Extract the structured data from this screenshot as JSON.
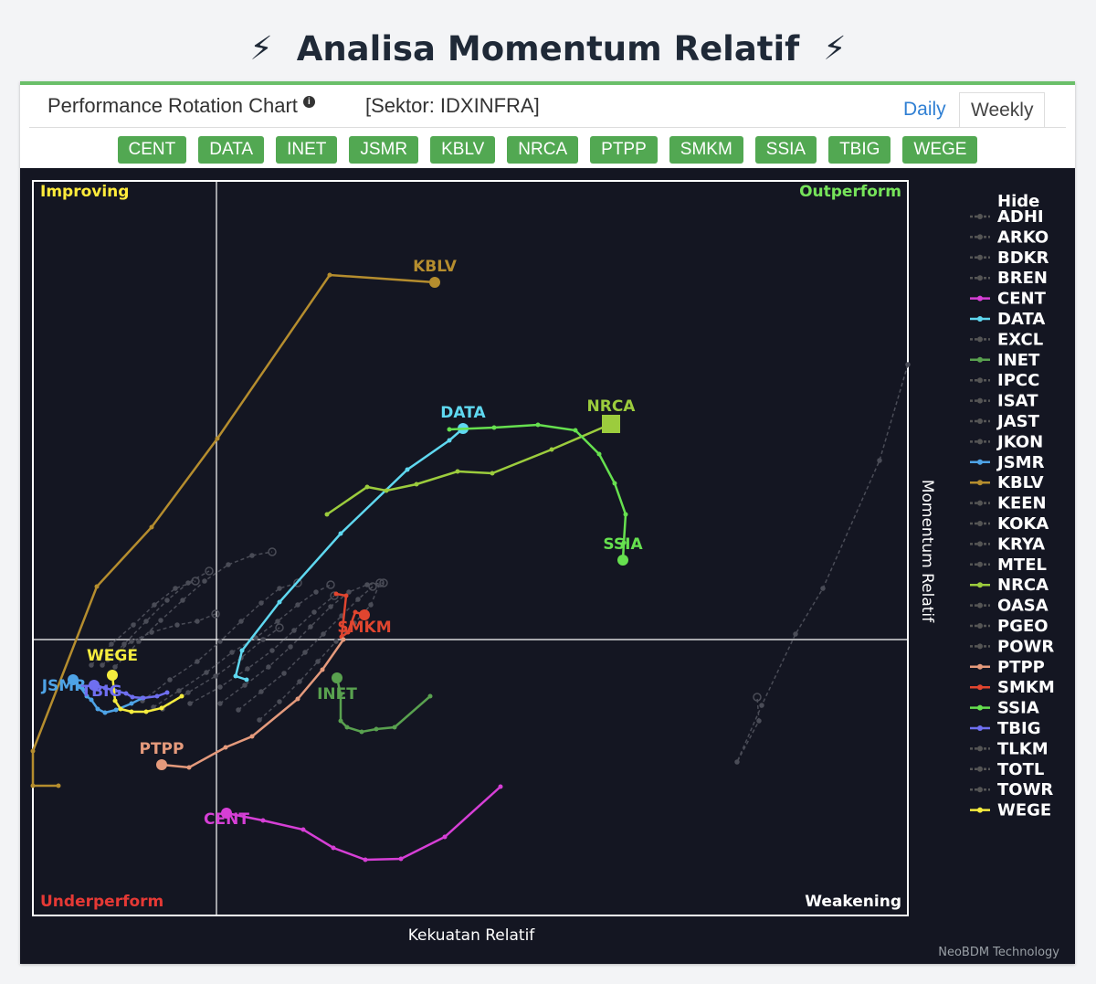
{
  "page": {
    "title": "Analisa Momentum Relatif",
    "bolt_glyph": "⚡"
  },
  "card": {
    "chart_title": "Performance Rotation Chart",
    "sector_label": "[Sektor: IDXINFRA]",
    "tabs": [
      {
        "label": "Daily"
      },
      {
        "label": "Weekly"
      }
    ],
    "chips": [
      "CENT",
      "DATA",
      "INET",
      "JSMR",
      "KBLV",
      "NRCA",
      "PTPP",
      "SMKM",
      "SSIA",
      "TBIG",
      "WEGE"
    ]
  },
  "chart_data": {
    "type": "scatter",
    "xlabel": "Kekuatan Relatif",
    "ylabel": "Momentum Relatif",
    "credit": "NeoBDM Technology",
    "quadrants": {
      "top_left": "Improving",
      "top_right": "Outperform",
      "bottom_left": "Underperform",
      "bottom_right": "Weakening"
    },
    "quadrant_colors": {
      "Improving": "#ffeb3b",
      "Outperform": "#76e35a",
      "Underperform": "#e53935",
      "Weakening": "#ffffff"
    },
    "xlim": [
      0,
      958
    ],
    "ylim": [
      0,
      804
    ],
    "x_center": 201,
    "y_center": 302,
    "legend_title": "Hide",
    "legend": [
      {
        "name": "ADHI",
        "color": "#555555"
      },
      {
        "name": "ARKO",
        "color": "#555555"
      },
      {
        "name": "BDKR",
        "color": "#555555"
      },
      {
        "name": "BREN",
        "color": "#555555"
      },
      {
        "name": "CENT",
        "color": "#d63fd6"
      },
      {
        "name": "DATA",
        "color": "#5fd8f0"
      },
      {
        "name": "EXCL",
        "color": "#555555"
      },
      {
        "name": "INET",
        "color": "#59a14f"
      },
      {
        "name": "IPCC",
        "color": "#555555"
      },
      {
        "name": "ISAT",
        "color": "#555555"
      },
      {
        "name": "JAST",
        "color": "#555555"
      },
      {
        "name": "JKON",
        "color": "#555555"
      },
      {
        "name": "JSMR",
        "color": "#4ea3e6"
      },
      {
        "name": "KBLV",
        "color": "#b58d2e"
      },
      {
        "name": "KEEN",
        "color": "#555555"
      },
      {
        "name": "KOKA",
        "color": "#555555"
      },
      {
        "name": "KRYA",
        "color": "#555555"
      },
      {
        "name": "MTEL",
        "color": "#555555"
      },
      {
        "name": "NRCA",
        "color": "#9ccc3d"
      },
      {
        "name": "OASA",
        "color": "#555555"
      },
      {
        "name": "PGEO",
        "color": "#555555"
      },
      {
        "name": "POWR",
        "color": "#555555"
      },
      {
        "name": "PTPP",
        "color": "#e59a7c"
      },
      {
        "name": "SMKM",
        "color": "#e0452f"
      },
      {
        "name": "SSIA",
        "color": "#66e04f"
      },
      {
        "name": "TBIG",
        "color": "#6f6ff0"
      },
      {
        "name": "TLKM",
        "color": "#555555"
      },
      {
        "name": "TOTL",
        "color": "#555555"
      },
      {
        "name": "TOWR",
        "color": "#555555"
      },
      {
        "name": "WEGE",
        "color": "#f5ec3e"
      }
    ],
    "series": [
      {
        "name": "KBLV",
        "color": "#b58d2e",
        "label_dx": 0,
        "label_dy": -12,
        "points": [
          [
            28,
            142
          ],
          [
            0,
            142
          ],
          [
            0,
            180
          ],
          [
            70,
            360
          ],
          [
            130,
            425
          ],
          [
            202,
            522
          ],
          [
            325,
            701
          ],
          [
            440,
            693
          ]
        ]
      },
      {
        "name": "DATA",
        "color": "#5fd8f0",
        "label_dx": 0,
        "label_dy": -12,
        "points": [
          [
            234,
            258
          ],
          [
            222,
            262
          ],
          [
            229,
            290
          ],
          [
            270,
            343
          ],
          [
            337,
            418
          ],
          [
            410,
            488
          ],
          [
            456,
            520
          ],
          [
            471,
            533
          ]
        ]
      },
      {
        "name": "NRCA",
        "color": "#9ccc3d",
        "label_dx": 0,
        "label_dy": -14,
        "end_marker": "square",
        "points": [
          [
            322,
            439
          ],
          [
            366,
            469
          ],
          [
            387,
            465
          ],
          [
            420,
            472
          ],
          [
            465,
            486
          ],
          [
            503,
            484
          ],
          [
            568,
            510
          ],
          [
            633,
            538
          ]
        ]
      },
      {
        "name": "SSIA",
        "color": "#66e04f",
        "label_dx": 0,
        "label_dy": -12,
        "points": [
          [
            456,
            532
          ],
          [
            505,
            534
          ],
          [
            553,
            537
          ],
          [
            594,
            531
          ],
          [
            620,
            505
          ],
          [
            637,
            473
          ],
          [
            649,
            439
          ],
          [
            647,
            408
          ],
          [
            646,
            389
          ]
        ]
      },
      {
        "name": "SMKM",
        "color": "#e0452f",
        "label_dx": 0,
        "label_dy": 19,
        "points": [
          [
            332,
            352
          ],
          [
            343,
            350
          ],
          [
            338,
            305
          ],
          [
            345,
            310
          ],
          [
            353,
            332
          ],
          [
            363,
            329
          ]
        ]
      },
      {
        "name": "INET",
        "color": "#59a14f",
        "label_dx": 0,
        "label_dy": 23,
        "points": [
          [
            435,
            240
          ],
          [
            396,
            206
          ],
          [
            376,
            204
          ],
          [
            360,
            201
          ],
          [
            344,
            206
          ],
          [
            337,
            213
          ],
          [
            337,
            242
          ],
          [
            333,
            260
          ]
        ]
      },
      {
        "name": "PTPP",
        "color": "#e59a7c",
        "label_dx": 0,
        "label_dy": -12,
        "points": [
          [
            340,
            302
          ],
          [
            317,
            269
          ],
          [
            290,
            237
          ],
          [
            240,
            196
          ],
          [
            211,
            184
          ],
          [
            171,
            162
          ],
          [
            141,
            165
          ]
        ]
      },
      {
        "name": "CENT",
        "color": "#d63fd6",
        "label_dx": 0,
        "label_dy": 12,
        "points": [
          [
            512,
            141
          ],
          [
            451,
            86
          ],
          [
            403,
            62
          ],
          [
            364,
            61
          ],
          [
            329,
            74
          ],
          [
            296,
            94
          ],
          [
            252,
            104
          ],
          [
            212,
            112
          ]
        ]
      },
      {
        "name": "JSMR",
        "color": "#4ea3e6",
        "label_dx": -10,
        "label_dy": 12,
        "points": [
          [
            120,
            238
          ],
          [
            108,
            232
          ],
          [
            91,
            225
          ],
          [
            79,
            222
          ],
          [
            71,
            226
          ],
          [
            64,
            236
          ],
          [
            59,
            240
          ],
          [
            52,
            250
          ],
          [
            44,
            258
          ]
        ]
      },
      {
        "name": "TBIG",
        "color": "#6f6ff0",
        "label_dx": 8,
        "label_dy": 12,
        "points": [
          [
            147,
            244
          ],
          [
            136,
            240
          ],
          [
            121,
            238
          ],
          [
            109,
            239
          ],
          [
            102,
            243
          ],
          [
            90,
            246
          ],
          [
            79,
            249
          ],
          [
            67,
            252
          ]
        ]
      },
      {
        "name": "WEGE",
        "color": "#f5ec3e",
        "label_dx": 0,
        "label_dy": -16,
        "points": [
          [
            163,
            240
          ],
          [
            141,
            227
          ],
          [
            124,
            223
          ],
          [
            108,
            223
          ],
          [
            96,
            226
          ],
          [
            90,
            235
          ],
          [
            87,
            263
          ]
        ]
      }
    ],
    "background_series": [
      {
        "color": "#4a4c57",
        "points": [
          [
            958,
            603
          ],
          [
            927,
            498
          ],
          [
            865,
            358
          ],
          [
            835,
            308
          ],
          [
            798,
            230
          ],
          [
            771,
            168
          ],
          [
            795,
            213
          ],
          [
            793,
            239
          ]
        ]
      },
      {
        "color": "#4a4c57",
        "points": [
          [
            64,
            274
          ],
          [
            86,
            297
          ],
          [
            110,
            318
          ],
          [
            133,
            340
          ],
          [
            156,
            358
          ],
          [
            178,
            366
          ]
        ]
      },
      {
        "color": "#4a4c57",
        "points": [
          [
            76,
            274
          ],
          [
            100,
            297
          ],
          [
            124,
            322
          ],
          [
            147,
            345
          ],
          [
            170,
            364
          ],
          [
            193,
            377
          ]
        ]
      },
      {
        "color": "#4a4c57",
        "points": [
          [
            90,
            272
          ],
          [
            116,
            300
          ],
          [
            140,
            323
          ],
          [
            164,
            345
          ],
          [
            188,
            366
          ],
          [
            214,
            384
          ],
          [
            240,
            394
          ],
          [
            262,
            398
          ]
        ]
      },
      {
        "color": "#4a4c57",
        "points": [
          [
            120,
            235
          ],
          [
            150,
            258
          ],
          [
            180,
            278
          ],
          [
            205,
            300
          ],
          [
            228,
            322
          ],
          [
            250,
            342
          ],
          [
            270,
            358
          ],
          [
            290,
            364
          ]
        ]
      },
      {
        "color": "#4a4c57",
        "points": [
          [
            142,
            226
          ],
          [
            170,
            244
          ],
          [
            200,
            262
          ],
          [
            228,
            282
          ],
          [
            252,
            302
          ],
          [
            270,
            315
          ]
        ]
      },
      {
        "color": "#4a4c57",
        "points": [
          [
            172,
            232
          ],
          [
            205,
            250
          ],
          [
            235,
            270
          ],
          [
            262,
            290
          ],
          [
            286,
            312
          ],
          [
            308,
            332
          ],
          [
            330,
            350
          ]
        ]
      },
      {
        "color": "#4a4c57",
        "points": [
          [
            132,
            228
          ],
          [
            160,
            246
          ],
          [
            190,
            266
          ],
          [
            218,
            288
          ],
          [
            244,
            304
          ],
          [
            268,
            322
          ],
          [
            290,
            340
          ],
          [
            310,
            354
          ],
          [
            326,
            362
          ]
        ]
      },
      {
        "color": "#4a4c57",
        "points": [
          [
            205,
            232
          ],
          [
            232,
            252
          ],
          [
            258,
            272
          ],
          [
            282,
            294
          ],
          [
            304,
            316
          ],
          [
            326,
            338
          ],
          [
            346,
            354
          ],
          [
            366,
            362
          ],
          [
            384,
            364
          ]
        ]
      },
      {
        "color": "#4a4c57",
        "points": [
          [
            225,
            225
          ],
          [
            250,
            245
          ],
          [
            275,
            265
          ],
          [
            298,
            288
          ],
          [
            318,
            308
          ],
          [
            338,
            328
          ],
          [
            356,
            346
          ],
          [
            372,
            360
          ]
        ]
      },
      {
        "color": "#4a4c57",
        "points": [
          [
            248,
            214
          ],
          [
            270,
            234
          ],
          [
            292,
            256
          ],
          [
            312,
            278
          ],
          [
            332,
            300
          ],
          [
            352,
            320
          ],
          [
            370,
            340
          ],
          [
            380,
            364
          ]
        ]
      },
      {
        "color": "#4a4c57",
        "points": [
          [
            82,
            280
          ],
          [
            108,
            300
          ],
          [
            130,
            310
          ],
          [
            158,
            318
          ],
          [
            180,
            322
          ],
          [
            200,
            330
          ]
        ]
      }
    ]
  }
}
